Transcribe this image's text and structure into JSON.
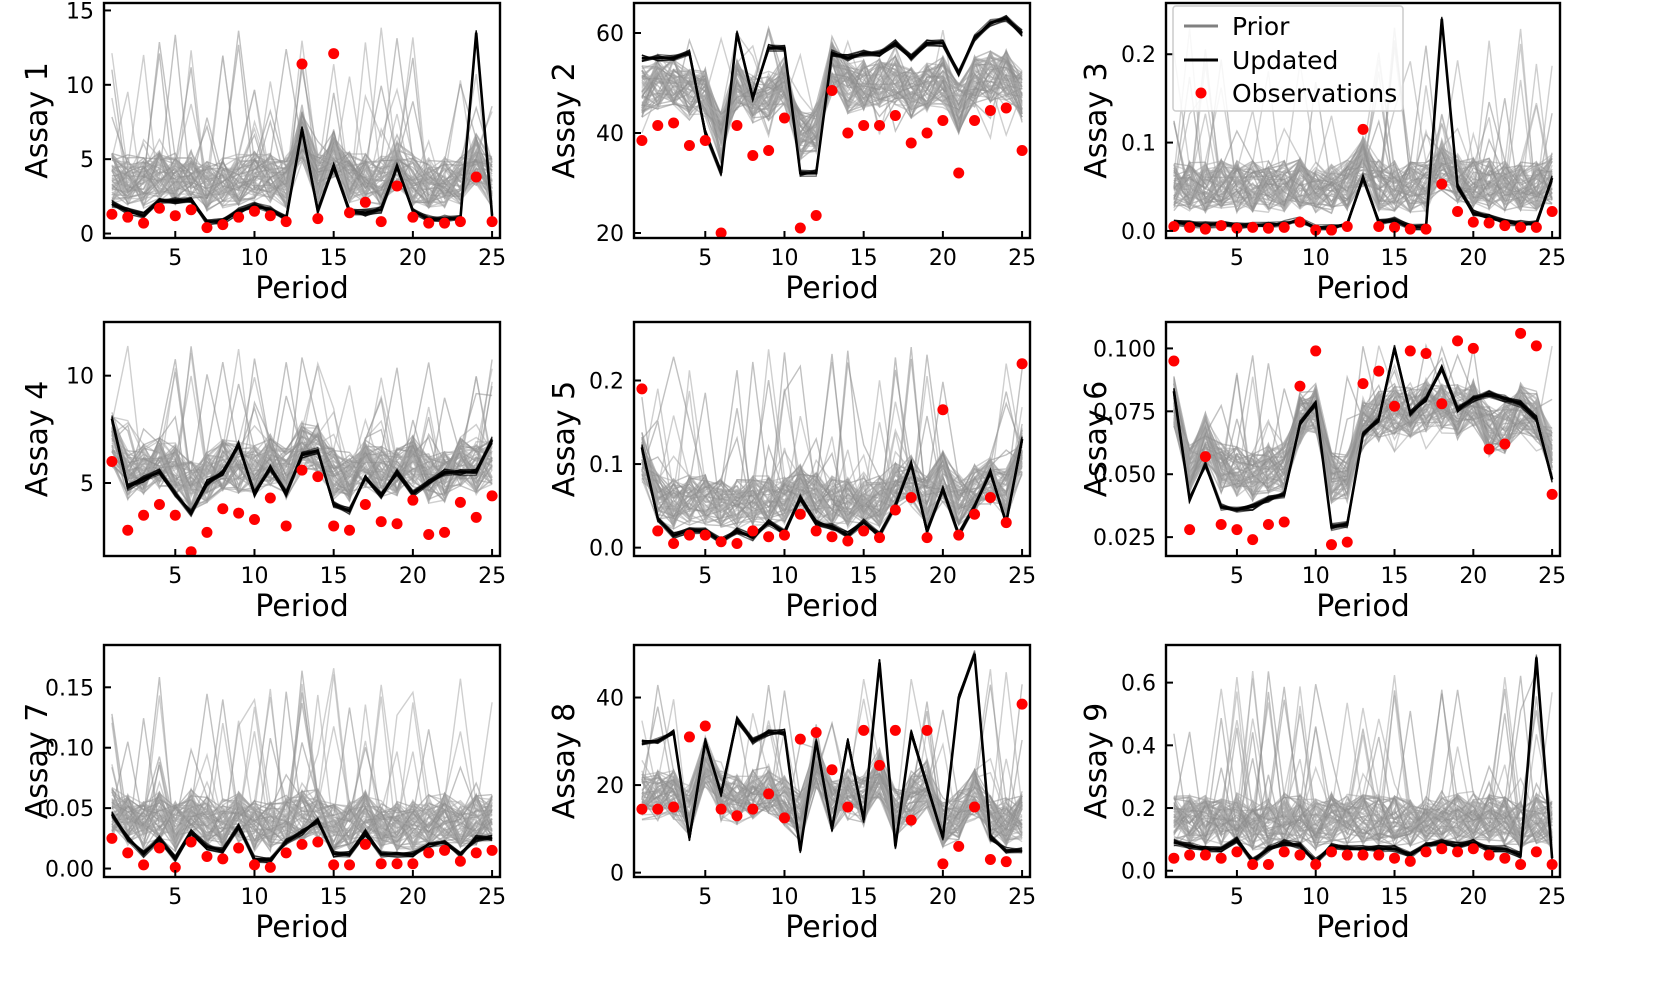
{
  "figure": {
    "legend": {
      "placement": "top-right of Assay 3 panel",
      "entries": [
        {
          "label": "Prior",
          "kind": "line",
          "color": "#808080"
        },
        {
          "label": "Updated",
          "kind": "line",
          "color": "#000000"
        },
        {
          "label": "Observations",
          "kind": "marker",
          "color": "#ff0000"
        }
      ]
    },
    "colors": {
      "prior": "#9a9a9a",
      "updated": "#000000",
      "observations": "#ff0000"
    }
  },
  "chart_data": [
    {
      "type": "line",
      "title": "",
      "xlabel": "Period",
      "ylabel": "Assay 1",
      "xlim": [
        0.5,
        25.5
      ],
      "ylim": [
        -0.3,
        15.5
      ],
      "xticks": [
        5,
        10,
        15,
        20,
        25
      ],
      "yticks": [
        0,
        5,
        10,
        15
      ],
      "ytick_labels": [
        "0",
        "5",
        "10",
        "15"
      ],
      "series": [
        {
          "role": "Updated",
          "values": [
            2.0,
            1.5,
            1.2,
            2.2,
            2.2,
            2.3,
            0.8,
            0.8,
            1.5,
            1.9,
            1.6,
            1.0,
            7.0,
            1.5,
            4.5,
            1.5,
            1.4,
            1.6,
            4.5,
            1.5,
            1.0,
            1.0,
            1.0,
            13.5,
            1.2
          ]
        },
        {
          "role": "Observations",
          "values": [
            1.3,
            1.1,
            0.7,
            1.7,
            1.2,
            1.6,
            0.4,
            0.6,
            1.1,
            1.5,
            1.2,
            0.8,
            11.4,
            1.0,
            12.1,
            1.4,
            2.1,
            0.8,
            3.2,
            1.1,
            0.7,
            0.7,
            0.8,
            3.8,
            0.8
          ]
        }
      ]
    },
    {
      "type": "line",
      "title": "",
      "xlabel": "Period",
      "ylabel": "Assay 2",
      "xlim": [
        0.5,
        25.5
      ],
      "ylim": [
        19,
        66
      ],
      "xticks": [
        5,
        10,
        15,
        20,
        25
      ],
      "yticks": [
        20,
        40,
        60
      ],
      "ytick_labels": [
        "20",
        "40",
        "60"
      ],
      "series": [
        {
          "role": "Updated",
          "values": [
            55,
            55,
            55,
            56,
            40,
            32,
            60,
            47,
            57,
            57,
            32,
            32,
            56,
            55,
            56,
            56,
            58,
            55,
            58,
            58,
            52,
            59,
            62,
            63,
            60
          ]
        },
        {
          "role": "Observations",
          "values": [
            38.5,
            41.5,
            42,
            37.5,
            38.5,
            20,
            41.5,
            35.5,
            36.5,
            43,
            21,
            23.5,
            48.5,
            40,
            41.5,
            41.5,
            43.5,
            38,
            40,
            42.5,
            32,
            42.5,
            44.5,
            45,
            36.5
          ]
        }
      ]
    },
    {
      "type": "line",
      "title": "",
      "xlabel": "Period",
      "ylabel": "Assay 3",
      "xlim": [
        0.5,
        25.5
      ],
      "ylim": [
        -0.008,
        0.258
      ],
      "xticks": [
        5,
        10,
        15,
        20,
        25
      ],
      "yticks": [
        0.0,
        0.1,
        0.2
      ],
      "ytick_labels": [
        "0.0",
        "0.1",
        "0.2"
      ],
      "series": [
        {
          "role": "Updated",
          "values": [
            0.01,
            0.008,
            0.007,
            0.008,
            0.006,
            0.006,
            0.007,
            0.008,
            0.012,
            0.004,
            0.004,
            0.008,
            0.06,
            0.01,
            0.012,
            0.004,
            0.004,
            0.24,
            0.05,
            0.02,
            0.015,
            0.01,
            0.008,
            0.008,
            0.06
          ]
        },
        {
          "role": "Observations",
          "values": [
            0.005,
            0.004,
            0.002,
            0.006,
            0.003,
            0.004,
            0.003,
            0.004,
            0.01,
            0.001,
            0.001,
            0.005,
            0.115,
            0.005,
            0.004,
            0.002,
            0.002,
            0.053,
            0.022,
            0.01,
            0.009,
            0.006,
            0.004,
            0.004,
            0.022
          ]
        }
      ]
    },
    {
      "type": "line",
      "title": "",
      "xlabel": "Period",
      "ylabel": "Assay 4",
      "xlim": [
        0.5,
        25.5
      ],
      "ylim": [
        1.6,
        12.5
      ],
      "xticks": [
        5,
        10,
        15,
        20,
        25
      ],
      "yticks": [
        5,
        10
      ],
      "ytick_labels": [
        "5",
        "10"
      ],
      "series": [
        {
          "role": "Updated",
          "values": [
            8.0,
            4.8,
            5.2,
            5.5,
            4.5,
            3.6,
            5.0,
            5.5,
            6.8,
            4.5,
            5.7,
            4.5,
            6.3,
            6.5,
            4.0,
            3.7,
            5.3,
            4.4,
            5.5,
            4.5,
            5.0,
            5.5,
            5.5,
            5.5,
            7.0
          ]
        },
        {
          "role": "Observations",
          "values": [
            6.0,
            2.8,
            3.5,
            4.0,
            3.5,
            1.8,
            2.7,
            3.8,
            3.6,
            3.3,
            4.3,
            3.0,
            5.6,
            5.3,
            3.0,
            2.8,
            4.0,
            3.2,
            3.1,
            4.2,
            2.6,
            2.7,
            4.1,
            3.4,
            4.4
          ]
        }
      ]
    },
    {
      "type": "line",
      "title": "",
      "xlabel": "Period",
      "ylabel": "Assay 5",
      "xlim": [
        0.5,
        25.5
      ],
      "ylim": [
        -0.01,
        0.27
      ],
      "xticks": [
        5,
        10,
        15,
        20,
        25
      ],
      "yticks": [
        0.0,
        0.1,
        0.2
      ],
      "ytick_labels": [
        "0.0",
        "0.1",
        "0.2"
      ],
      "series": [
        {
          "role": "Updated",
          "values": [
            0.12,
            0.035,
            0.015,
            0.02,
            0.02,
            0.008,
            0.02,
            0.012,
            0.03,
            0.018,
            0.06,
            0.03,
            0.025,
            0.015,
            0.03,
            0.015,
            0.05,
            0.1,
            0.02,
            0.07,
            0.015,
            0.05,
            0.09,
            0.03,
            0.13
          ]
        },
        {
          "role": "Observations",
          "values": [
            0.19,
            0.02,
            0.005,
            0.015,
            0.015,
            0.007,
            0.005,
            0.02,
            0.013,
            0.015,
            0.04,
            0.02,
            0.013,
            0.008,
            0.02,
            0.012,
            0.045,
            0.06,
            0.012,
            0.165,
            0.015,
            0.04,
            0.06,
            0.03,
            0.22
          ]
        }
      ]
    },
    {
      "type": "line",
      "title": "",
      "xlabel": "Period",
      "ylabel": "Assay 6",
      "xlim": [
        0.5,
        25.5
      ],
      "ylim": [
        0.0175,
        0.1105
      ],
      "xticks": [
        5,
        10,
        15,
        20,
        25
      ],
      "yticks": [
        0.025,
        0.05,
        0.075,
        0.1
      ],
      "ytick_labels": [
        "0.025",
        "0.050",
        "0.075",
        "0.100"
      ],
      "series": [
        {
          "role": "Updated",
          "values": [
            0.083,
            0.04,
            0.054,
            0.037,
            0.036,
            0.037,
            0.04,
            0.042,
            0.07,
            0.078,
            0.029,
            0.03,
            0.066,
            0.072,
            0.1,
            0.074,
            0.08,
            0.092,
            0.076,
            0.08,
            0.082,
            0.08,
            0.078,
            0.072,
            0.048
          ]
        },
        {
          "role": "Observations",
          "values": [
            0.095,
            0.028,
            0.057,
            0.03,
            0.028,
            0.024,
            0.03,
            0.031,
            0.085,
            0.099,
            0.022,
            0.023,
            0.086,
            0.091,
            0.077,
            0.099,
            0.098,
            0.078,
            0.103,
            0.1,
            0.06,
            0.062,
            0.106,
            0.101,
            0.042
          ]
        }
      ]
    },
    {
      "type": "line",
      "title": "",
      "xlabel": "Period",
      "ylabel": "Assay 7",
      "xlim": [
        0.5,
        25.5
      ],
      "ylim": [
        -0.007,
        0.185
      ],
      "xticks": [
        5,
        10,
        15,
        20,
        25
      ],
      "yticks": [
        0.0,
        0.05,
        0.1,
        0.15
      ],
      "ytick_labels": [
        "0.00",
        "0.05",
        "0.10",
        "0.15"
      ],
      "series": [
        {
          "role": "Updated",
          "values": [
            0.045,
            0.025,
            0.012,
            0.025,
            0.008,
            0.03,
            0.018,
            0.015,
            0.035,
            0.008,
            0.007,
            0.022,
            0.03,
            0.04,
            0.012,
            0.012,
            0.03,
            0.012,
            0.012,
            0.012,
            0.02,
            0.022,
            0.012,
            0.025,
            0.025
          ]
        },
        {
          "role": "Observations",
          "values": [
            0.025,
            0.013,
            0.003,
            0.017,
            0.001,
            0.022,
            0.01,
            0.008,
            0.017,
            0.003,
            0.001,
            0.013,
            0.02,
            0.022,
            0.003,
            0.003,
            0.02,
            0.004,
            0.004,
            0.004,
            0.013,
            0.015,
            0.006,
            0.013,
            0.015
          ]
        }
      ]
    },
    {
      "type": "line",
      "title": "",
      "xlabel": "Period",
      "ylabel": "Assay 8",
      "xlim": [
        0.5,
        25.5
      ],
      "ylim": [
        -1,
        52
      ],
      "xticks": [
        5,
        10,
        15,
        20,
        25
      ],
      "yticks": [
        0,
        20,
        40
      ],
      "ytick_labels": [
        "0",
        "20",
        "40"
      ],
      "series": [
        {
          "role": "Updated",
          "values": [
            30,
            30,
            32,
            8,
            30,
            18,
            35,
            30,
            32,
            32,
            5,
            30,
            10,
            30,
            12,
            48,
            6,
            32,
            20,
            8,
            40,
            50,
            8,
            5,
            5
          ]
        },
        {
          "role": "Observations",
          "values": [
            14.5,
            14.5,
            15,
            31,
            33.5,
            14.5,
            13,
            14.5,
            18,
            12.5,
            30.5,
            32,
            23.5,
            15,
            32.5,
            24.5,
            32.5,
            12,
            32.5,
            2,
            6,
            15,
            3,
            2.5,
            38.5
          ]
        }
      ]
    },
    {
      "type": "line",
      "title": "",
      "xlabel": "Period",
      "ylabel": "Assay 9",
      "xlim": [
        0.5,
        25.5
      ],
      "ylim": [
        -0.02,
        0.72
      ],
      "xticks": [
        5,
        10,
        15,
        20,
        25
      ],
      "yticks": [
        0.0,
        0.2,
        0.4,
        0.6
      ],
      "ytick_labels": [
        "0.0",
        "0.2",
        "0.4",
        "0.6"
      ],
      "series": [
        {
          "role": "Updated",
          "values": [
            0.09,
            0.08,
            0.07,
            0.07,
            0.1,
            0.03,
            0.07,
            0.09,
            0.08,
            0.03,
            0.08,
            0.07,
            0.07,
            0.07,
            0.07,
            0.05,
            0.08,
            0.09,
            0.08,
            0.09,
            0.07,
            0.07,
            0.05,
            0.68,
            0.04
          ]
        },
        {
          "role": "Observations",
          "values": [
            0.04,
            0.05,
            0.05,
            0.04,
            0.06,
            0.02,
            0.02,
            0.06,
            0.05,
            0.02,
            0.06,
            0.05,
            0.05,
            0.05,
            0.04,
            0.03,
            0.06,
            0.07,
            0.06,
            0.07,
            0.05,
            0.04,
            0.02,
            0.06,
            0.02
          ]
        }
      ]
    }
  ]
}
